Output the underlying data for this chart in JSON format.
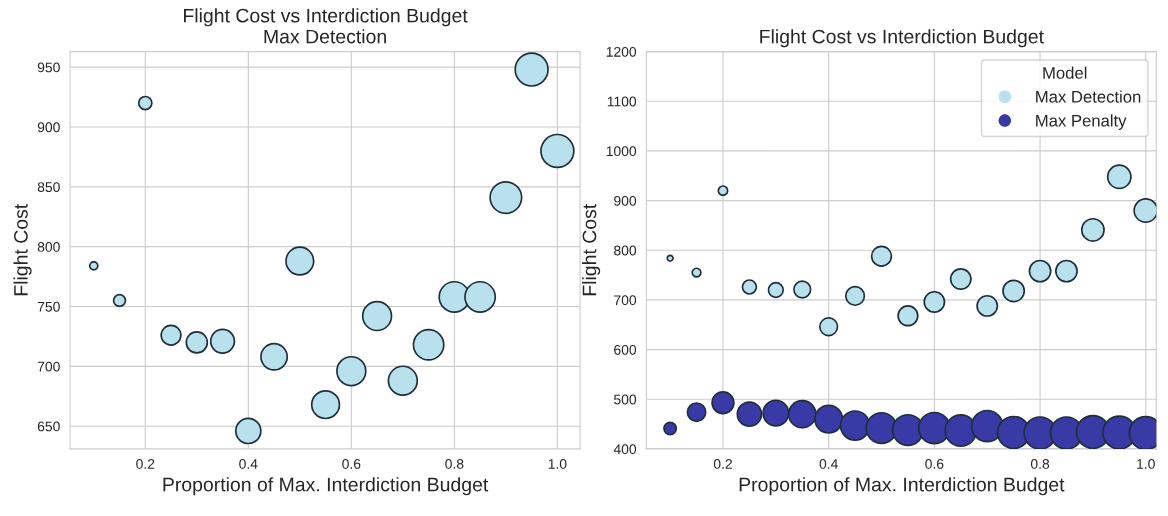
{
  "chart_data": [
    {
      "type": "bubble",
      "title": "Flight Cost vs Interdiction Budget\nMax Detection",
      "xlabel": "Proportion of Max. Interdiction Budget",
      "ylabel": "Flight Cost",
      "x": [
        0.1,
        0.15,
        0.2,
        0.25,
        0.3,
        0.35,
        0.4,
        0.45,
        0.5,
        0.55,
        0.6,
        0.65,
        0.7,
        0.75,
        0.8,
        0.85,
        0.9,
        0.95,
        1.0
      ],
      "series": [
        {
          "color": "#b9e0ed",
          "values": [
            784,
            755,
            920,
            726,
            720,
            721,
            646,
            708,
            788,
            668,
            696,
            742,
            688,
            718,
            758,
            758,
            841,
            948,
            880
          ],
          "sizes": [
            0.06,
            0.13,
            0.16,
            0.36,
            0.41,
            0.52,
            0.58,
            0.64,
            0.71,
            0.71,
            0.77,
            0.77,
            0.77,
            0.85,
            0.85,
            0.85,
            0.92,
            1,
            1
          ]
        }
      ],
      "xlim": [
        0.054,
        1.044
      ],
      "ylim": [
        631,
        963
      ],
      "xticks": [
        0.2,
        0.4,
        0.6,
        0.8,
        {
          "value": 1,
          "label": "1.0"
        }
      ],
      "yticks": [
        650,
        700,
        750,
        800,
        850,
        900,
        950
      ],
      "grid": true
    },
    {
      "type": "bubble",
      "title": "Flight Cost vs Interdiction Budget",
      "xlabel": "Proportion of Max. Interdiction Budget",
      "ylabel": "Flight Cost",
      "legend_title": "Model",
      "x": [
        0.1,
        0.15,
        0.2,
        0.25,
        0.3,
        0.35,
        0.4,
        0.45,
        0.5,
        0.55,
        0.6,
        0.65,
        0.7,
        0.75,
        0.8,
        0.85,
        0.9,
        0.95,
        1.0
      ],
      "series": [
        {
          "name": "Max Detection",
          "color": "#b9e0ed",
          "values": [
            784,
            755,
            920,
            726,
            720,
            721,
            646,
            708,
            788,
            668,
            696,
            742,
            688,
            718,
            758,
            758,
            841,
            948,
            880
          ],
          "sizes": [
            0.03,
            0.07,
            0.08,
            0.18,
            0.2,
            0.26,
            0.29,
            0.32,
            0.36,
            0.36,
            0.38,
            0.38,
            0.38,
            0.42,
            0.42,
            0.42,
            0.46,
            0.5,
            0.5
          ]
        },
        {
          "name": "Max Penalty",
          "color": "#3a3aa6",
          "values": [
            441,
            474,
            493,
            470,
            472,
            470,
            460,
            447,
            442,
            438,
            442,
            437,
            446,
            433,
            432,
            432,
            434,
            433,
            432
          ],
          "sizes": [
            0.14,
            0.31,
            0.44,
            0.54,
            0.6,
            0.68,
            0.71,
            0.79,
            0.87,
            0.87,
            0.9,
            0.9,
            0.9,
            0.95,
            0.95,
            0.95,
            1,
            1,
            1
          ]
        }
      ],
      "xlim": [
        0.055,
        1.02
      ],
      "ylim": [
        400,
        1200
      ],
      "xticks": [
        0.2,
        0.4,
        0.6,
        0.8,
        {
          "value": 1,
          "label": "1.0"
        }
      ],
      "yticks": [
        400,
        500,
        600,
        700,
        800,
        900,
        1000,
        1100,
        1200
      ],
      "grid": true,
      "legend": "top right"
    }
  ]
}
